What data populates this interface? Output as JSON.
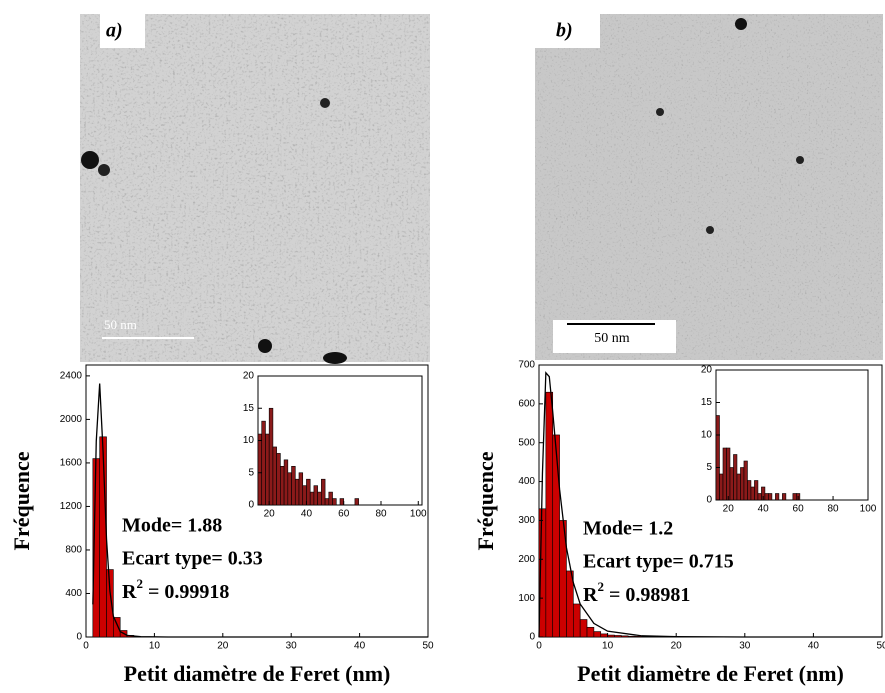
{
  "panels": [
    {
      "label": "a)",
      "scale_bar": "50 nm"
    },
    {
      "label": "b)",
      "scale_bar": "50 nm"
    }
  ],
  "chart_data": [
    {
      "type": "histogram",
      "x_label": "Petit diamètre de Feret (nm)",
      "y_label": "Fréquence",
      "bins": [
        1,
        2,
        3,
        4,
        5,
        6,
        7
      ],
      "values": [
        1640,
        1840,
        620,
        180,
        60,
        15
      ],
      "color": "#cc0000",
      "fit": {
        "x": [
          1,
          1.5,
          2,
          2.5,
          3,
          3.5,
          4,
          5,
          6,
          8,
          12,
          50
        ],
        "y": [
          300,
          1800,
          2330,
          1700,
          900,
          420,
          190,
          50,
          15,
          3,
          0,
          0
        ]
      },
      "xlim": [
        0,
        50
      ],
      "xticks": [
        0,
        10,
        20,
        30,
        40,
        50
      ],
      "ylim": [
        0,
        2500
      ],
      "yticks": [
        0,
        400,
        800,
        1200,
        1600,
        2000,
        2400
      ],
      "annotations": [
        "Mode= 1.88",
        "Ecart type= 0.33"
      ],
      "r2_symbol": "R",
      "r2_exponent": "2",
      "r2_value": " = 0.99918"
    },
    {
      "type": "histogram",
      "bins": [
        14,
        16,
        18,
        20,
        22,
        24,
        26,
        28,
        30,
        32,
        34,
        36,
        38,
        40,
        42,
        44,
        46,
        48,
        50,
        52,
        54,
        56,
        58,
        60,
        62,
        64,
        66,
        68,
        70
      ],
      "values": [
        11,
        13,
        11,
        15,
        9,
        8,
        6,
        7,
        5,
        6,
        4,
        5,
        3,
        4,
        2,
        3,
        2,
        4,
        1,
        2,
        1,
        0,
        1,
        0,
        0,
        0,
        1,
        0
      ],
      "color": "#8b1a1a",
      "xlim": [
        14,
        102
      ],
      "xticks": [
        20,
        40,
        60,
        80,
        100
      ],
      "ylim": [
        0,
        20
      ],
      "yticks": [
        0,
        5,
        10,
        15,
        20
      ]
    },
    {
      "type": "histogram",
      "x_label": "Petit diamètre de Feret (nm)",
      "y_label": "Fréquence",
      "bins": [
        0,
        1,
        2,
        3,
        4,
        5,
        6,
        7,
        8,
        9,
        10,
        11,
        12,
        13,
        14,
        15,
        16,
        17,
        18,
        19,
        20
      ],
      "values": [
        330,
        630,
        520,
        300,
        170,
        85,
        45,
        25,
        14,
        8,
        5,
        4,
        3,
        2,
        2,
        1,
        1,
        1,
        1,
        1
      ],
      "color": "#cc0000",
      "fit": {
        "x": [
          0,
          0.5,
          1,
          1.5,
          2,
          3,
          4,
          5,
          6,
          8,
          10,
          15,
          20,
          30,
          50
        ],
        "y": [
          0,
          420,
          680,
          670,
          580,
          380,
          230,
          140,
          85,
          35,
          15,
          3,
          1,
          0,
          0
        ]
      },
      "xlim": [
        0,
        50
      ],
      "xticks": [
        0,
        10,
        20,
        30,
        40,
        50
      ],
      "ylim": [
        0,
        700
      ],
      "yticks": [
        0,
        100,
        200,
        300,
        400,
        500,
        600,
        700
      ],
      "annotations": [
        "Mode= 1.2",
        "Ecart type= 0.715"
      ],
      "r2_symbol": "R",
      "r2_exponent": "2",
      "r2_value": " = 0.98981"
    },
    {
      "type": "histogram",
      "bins": [
        13,
        15,
        17,
        19,
        21,
        23,
        25,
        27,
        29,
        31,
        33,
        35,
        37,
        39,
        41,
        43,
        45,
        47,
        49,
        51,
        53,
        55,
        57,
        59,
        61
      ],
      "values": [
        13,
        4,
        8,
        8,
        5,
        7,
        4,
        5,
        6,
        3,
        2,
        3,
        1,
        2,
        1,
        1,
        0,
        1,
        0,
        1,
        0,
        0,
        1,
        1
      ],
      "color": "#8b1a1a",
      "xlim": [
        13,
        100
      ],
      "xticks": [
        20,
        40,
        60,
        80,
        100
      ],
      "ylim": [
        0,
        20
      ],
      "yticks": [
        0,
        5,
        10,
        15,
        20
      ]
    }
  ]
}
